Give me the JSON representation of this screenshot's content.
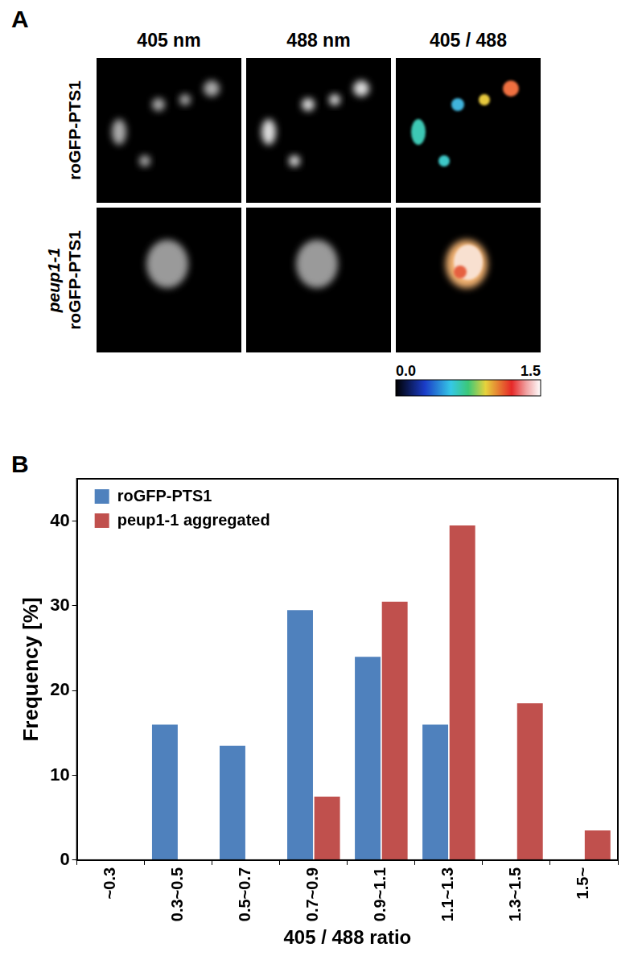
{
  "panel_a": {
    "label": "A",
    "column_headers": [
      "405 nm",
      "488 nm",
      "405 / 488"
    ],
    "row_labels": [
      [
        "roGFP-PTS1"
      ],
      [
        "peup1-1",
        "roGFP-PTS1"
      ]
    ],
    "colorbar": {
      "range": [
        0.0,
        1.5
      ],
      "ticks": [
        {
          "value": 0,
          "label": "0.0"
        },
        {
          "value": 1.5,
          "label": "1.5"
        }
      ]
    }
  },
  "chart_data": {
    "type": "bar",
    "label": "B",
    "categories": [
      "~0.3",
      "0.3~0.5",
      "0.5~0.7",
      "0.7~0.9",
      "0.9~1.1",
      "1.1~1.3",
      "1.3~1.5",
      "1.5~"
    ],
    "series": [
      {
        "name": "roGFP-PTS1",
        "color": "#4f81bd",
        "values": [
          0,
          16,
          13.5,
          29.5,
          24,
          16,
          0,
          0
        ]
      },
      {
        "name": "peup1-1 aggregated",
        "color": "#c0504d",
        "values": [
          0,
          0,
          0,
          7.5,
          30.5,
          39.5,
          18.5,
          3.5
        ]
      }
    ],
    "x_label": "405 / 488 ratio",
    "y_label": "Frequency [%]",
    "ylim": [
      0,
      45
    ],
    "yticks": [
      0,
      10,
      20,
      30,
      40
    ],
    "grid": false,
    "legend": "upper left"
  }
}
